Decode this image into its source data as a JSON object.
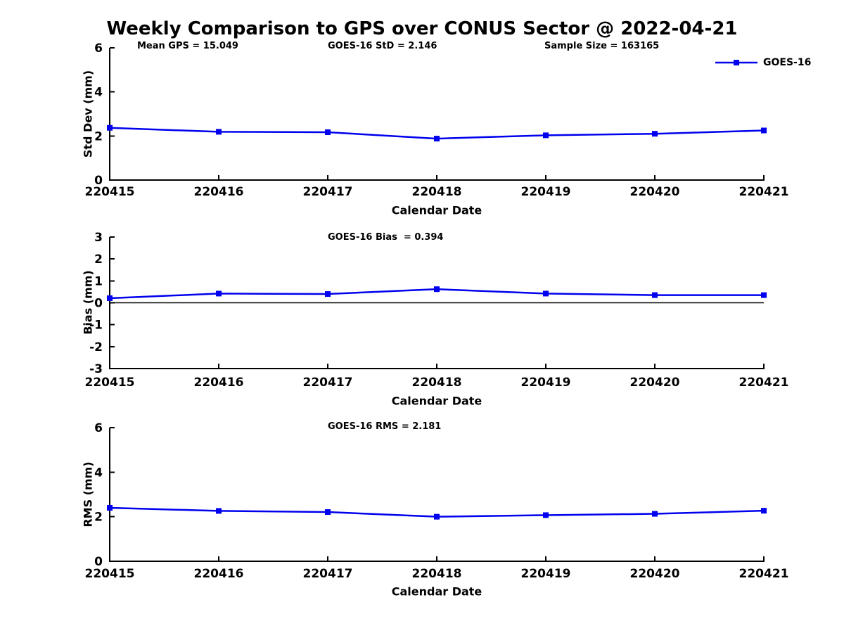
{
  "figure": {
    "title": "Weekly Comparison to GPS over CONUS Sector @ 2022-04-21",
    "background_color": "#ffffff",
    "accent_color": "#0000ee"
  },
  "chart_data": [
    {
      "type": "line",
      "title": "",
      "xlabel": "Calendar Date",
      "ylabel": "Std Dev (mm)",
      "categories": [
        "220415",
        "220416",
        "220417",
        "220418",
        "220419",
        "220420",
        "220421"
      ],
      "series": [
        {
          "name": "GOES-16",
          "color": "#0000ee",
          "marker": "square",
          "values": [
            2.37,
            2.19,
            2.17,
            1.88,
            2.03,
            2.1,
            2.25
          ]
        }
      ],
      "ylim": [
        0,
        6
      ],
      "yticks": [
        0,
        2,
        4,
        6
      ],
      "grid": false,
      "zero_line": false,
      "legend": {
        "label": "GOES-16",
        "position": "top-right",
        "box": false
      },
      "annotations": [
        "Mean GPS = 15.049",
        "GOES-16 StD = 2.146",
        "Sample Size = 163165"
      ]
    },
    {
      "type": "line",
      "title": "",
      "xlabel": "Calendar Date",
      "ylabel": "Bias (mm)",
      "categories": [
        "220415",
        "220416",
        "220417",
        "220418",
        "220419",
        "220420",
        "220421"
      ],
      "series": [
        {
          "name": "GOES-16",
          "color": "#0000ee",
          "marker": "square",
          "values": [
            0.21,
            0.42,
            0.4,
            0.62,
            0.42,
            0.35,
            0.35
          ]
        }
      ],
      "ylim": [
        -3,
        3
      ],
      "yticks": [
        -3,
        -2,
        -1,
        0,
        1,
        2,
        3
      ],
      "grid": false,
      "zero_line": true,
      "annotations": [
        "GOES-16 Bias  = 0.394"
      ]
    },
    {
      "type": "line",
      "title": "",
      "xlabel": "Calendar Date",
      "ylabel": "RMS (mm)",
      "categories": [
        "220415",
        "220416",
        "220417",
        "220418",
        "220419",
        "220420",
        "220421"
      ],
      "series": [
        {
          "name": "GOES-16",
          "color": "#0000ee",
          "marker": "square",
          "values": [
            2.4,
            2.26,
            2.21,
            2.0,
            2.07,
            2.13,
            2.27
          ]
        }
      ],
      "ylim": [
        0,
        6
      ],
      "yticks": [
        0,
        2,
        4,
        6
      ],
      "grid": false,
      "zero_line": false,
      "annotations": [
        "GOES-16 RMS = 2.181"
      ]
    }
  ]
}
